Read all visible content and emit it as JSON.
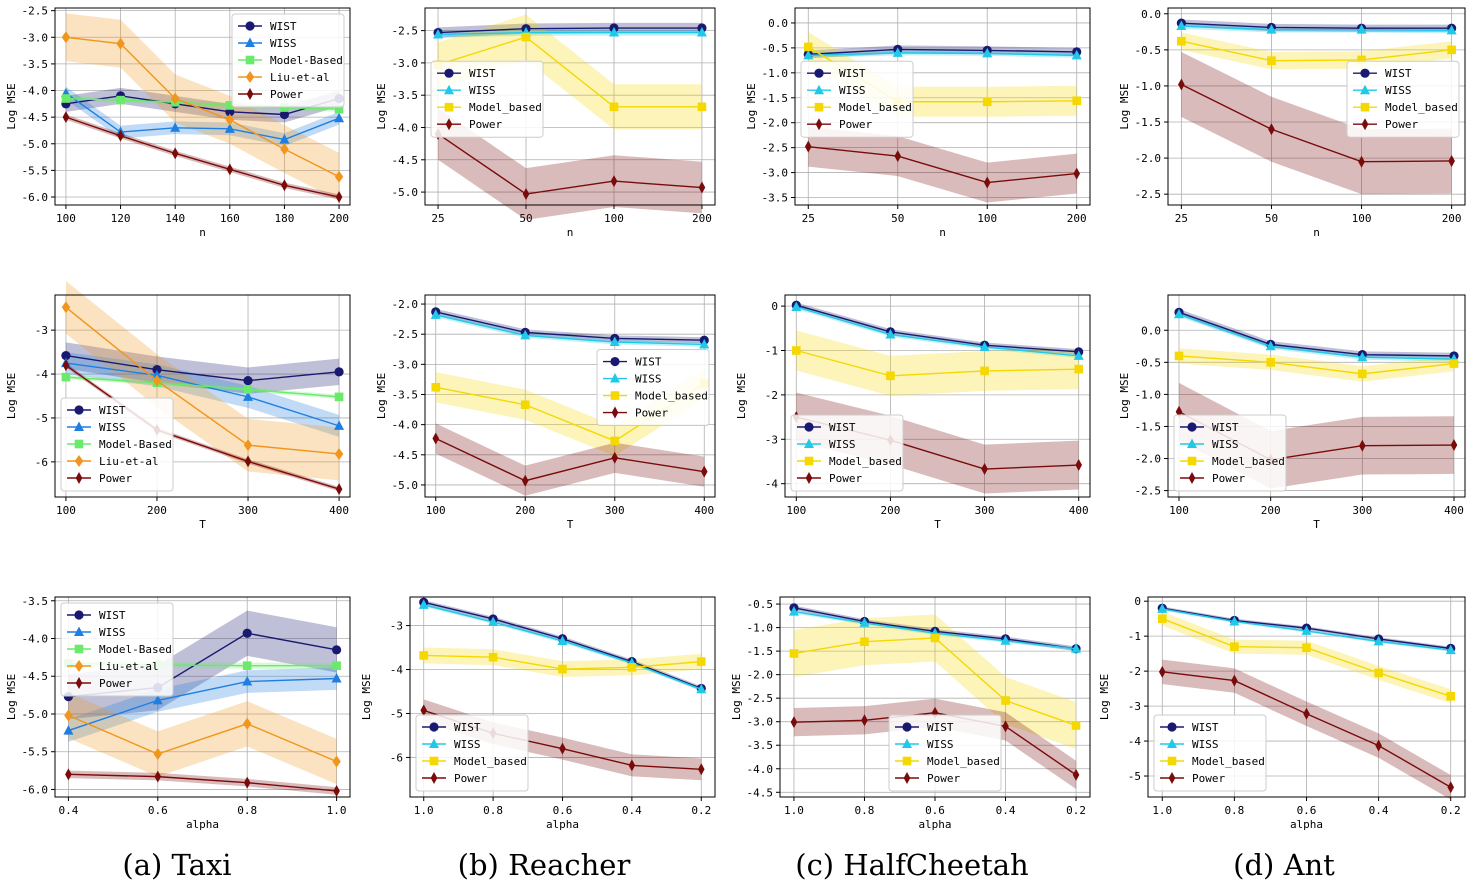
{
  "captions": [
    "(a) Taxi",
    "(b) Reacher",
    "(c) HalfCheetah",
    "(d) Ant"
  ],
  "colors": {
    "WIST": "#191970",
    "WISS": "#1f7fe0",
    "WISS_mj": "#21c8e8",
    "Model-Based": "#6aea6a",
    "Model_based": "#f5d800",
    "Liu-et-al": "#f0961c",
    "Power": "#7a0b0b"
  },
  "chart_data": [
    {
      "id": "taxi-n",
      "type": "line",
      "xlabel": "n",
      "ylabel": "Log MSE",
      "xtype": "linear",
      "x": [
        100,
        120,
        140,
        160,
        180,
        200
      ],
      "xticks": [
        "100",
        "120",
        "140",
        "160",
        "180",
        "200"
      ],
      "xlim": [
        96,
        204
      ],
      "ylim": [
        -6.15,
        -2.45
      ],
      "yticks": [
        -6.0,
        -5.5,
        -5.0,
        -4.5,
        -4.0,
        -3.5,
        -3.0,
        -2.5
      ],
      "ytick_labels": [
        "-6.0",
        "-5.5",
        "-5.0",
        "-4.5",
        "-4.0",
        "-3.5",
        "-3.0",
        "-2.5"
      ],
      "legend": "top-right",
      "series": [
        {
          "name": "WIST",
          "values": [
            -4.25,
            -4.1,
            -4.25,
            -4.4,
            -4.45,
            -4.15
          ],
          "band": 0.15
        },
        {
          "name": "WISS",
          "values": [
            -4.05,
            -4.78,
            -4.7,
            -4.72,
            -4.92,
            -4.52
          ],
          "band": 0.12
        },
        {
          "name": "Model-Based",
          "values": [
            -4.15,
            -4.18,
            -4.22,
            -4.28,
            -4.32,
            -4.35
          ],
          "band": 0.05
        },
        {
          "name": "Liu-et-al",
          "values": [
            -3.0,
            -3.12,
            -4.15,
            -4.55,
            -5.1,
            -5.62
          ],
          "band": 0.45
        },
        {
          "name": "Power",
          "values": [
            -4.5,
            -4.85,
            -5.18,
            -5.48,
            -5.78,
            -6.0
          ],
          "band": 0.05
        }
      ]
    },
    {
      "id": "reacher-n",
      "type": "line",
      "xlabel": "n",
      "ylabel": "Log MSE",
      "xtype": "category",
      "x": [
        25,
        50,
        100,
        200
      ],
      "xticks": [
        "25",
        "50",
        "100",
        "200"
      ],
      "ylim": [
        -5.2,
        -2.15
      ],
      "yticks": [
        -5.0,
        -4.5,
        -4.0,
        -3.5,
        -3.0,
        -2.5
      ],
      "ytick_labels": [
        "-5.0",
        "-4.5",
        "-4.0",
        "-3.5",
        "-3.0",
        "-2.5"
      ],
      "legend": "mid-left",
      "series": [
        {
          "name": "WIST",
          "values": [
            -2.53,
            -2.47,
            -2.46,
            -2.46
          ],
          "band": 0.08
        },
        {
          "name": "WISS",
          "values": [
            -2.56,
            -2.53,
            -2.53,
            -2.53
          ],
          "band": 0.05
        },
        {
          "name": "Model_based",
          "values": [
            -3.03,
            -2.6,
            -3.68,
            -3.68
          ],
          "band": 0.35
        },
        {
          "name": "Power",
          "values": [
            -4.1,
            -5.03,
            -4.83,
            -4.93
          ],
          "band": 0.4
        }
      ]
    },
    {
      "id": "halfcheetah-n",
      "type": "line",
      "xlabel": "n",
      "ylabel": "Log MSE",
      "xtype": "category",
      "x": [
        25,
        50,
        100,
        200
      ],
      "xticks": [
        "25",
        "50",
        "100",
        "200"
      ],
      "ylim": [
        -3.65,
        0.3
      ],
      "yticks": [
        -3.5,
        -3.0,
        -2.5,
        -2.0,
        -1.5,
        -1.0,
        -0.5,
        0.0
      ],
      "ytick_labels": [
        "-3.5",
        "-3.0",
        "-2.5",
        "-2.0",
        "-1.5",
        "-1.0",
        "-0.5",
        "0.0"
      ],
      "legend": "mid-left",
      "series": [
        {
          "name": "WIST",
          "values": [
            -0.63,
            -0.53,
            -0.55,
            -0.58
          ],
          "band": 0.08
        },
        {
          "name": "WISS",
          "values": [
            -0.65,
            -0.6,
            -0.61,
            -0.65
          ],
          "band": 0.05
        },
        {
          "name": "Model_based",
          "values": [
            -0.48,
            -1.58,
            -1.58,
            -1.56
          ],
          "band": 0.3
        },
        {
          "name": "Power",
          "values": [
            -2.48,
            -2.67,
            -3.2,
            -3.02
          ],
          "band": 0.4
        }
      ]
    },
    {
      "id": "ant-n",
      "type": "line",
      "xlabel": "n",
      "ylabel": "Log MSE",
      "xtype": "category",
      "x": [
        25,
        50,
        100,
        200
      ],
      "xticks": [
        "25",
        "50",
        "100",
        "200"
      ],
      "ylim": [
        -2.65,
        0.08
      ],
      "yticks": [
        -2.5,
        -2.0,
        -1.5,
        -1.0,
        -0.5,
        0.0
      ],
      "ytick_labels": [
        "-2.5",
        "-2.0",
        "-1.5",
        "-1.0",
        "-0.5",
        "0.0"
      ],
      "legend": "mid-right",
      "series": [
        {
          "name": "WIST",
          "values": [
            -0.13,
            -0.19,
            -0.2,
            -0.2
          ],
          "band": 0.05
        },
        {
          "name": "WISS",
          "values": [
            -0.17,
            -0.22,
            -0.22,
            -0.23
          ],
          "band": 0.04
        },
        {
          "name": "Model_based",
          "values": [
            -0.38,
            -0.65,
            -0.64,
            -0.5
          ],
          "band": 0.12
        },
        {
          "name": "Power",
          "values": [
            -0.98,
            -1.6,
            -2.05,
            -2.04
          ],
          "band": 0.45
        }
      ]
    },
    {
      "id": "taxi-t",
      "type": "line",
      "xlabel": "T",
      "ylabel": "Log MSE",
      "xtype": "linear",
      "x": [
        100,
        200,
        300,
        400
      ],
      "xticks": [
        "100",
        "200",
        "300",
        "400"
      ],
      "xlim": [
        88,
        412
      ],
      "ylim": [
        -6.8,
        -2.2
      ],
      "yticks": [
        -6,
        -5,
        -4,
        -3
      ],
      "ytick_labels": [
        "-6",
        "-5",
        "-4",
        "-3"
      ],
      "legend": "bottom-left",
      "series": [
        {
          "name": "WIST",
          "values": [
            -3.58,
            -3.9,
            -4.15,
            -3.95
          ],
          "band": 0.3
        },
        {
          "name": "WISS",
          "values": [
            -3.75,
            -4.03,
            -4.52,
            -5.18
          ],
          "band": 0.25
        },
        {
          "name": "Model-Based",
          "values": [
            -4.07,
            -4.2,
            -4.35,
            -4.52
          ],
          "band": 0.05
        },
        {
          "name": "Liu-et-al",
          "values": [
            -2.48,
            -4.15,
            -5.62,
            -5.82
          ],
          "band": 0.6
        },
        {
          "name": "Power",
          "values": [
            -3.8,
            -5.27,
            -5.99,
            -6.62
          ],
          "band": 0.05
        }
      ]
    },
    {
      "id": "reacher-t",
      "type": "line",
      "xlabel": "T",
      "ylabel": "Log MSE",
      "xtype": "linear",
      "x": [
        100,
        200,
        300,
        400
      ],
      "xticks": [
        "100",
        "200",
        "300",
        "400"
      ],
      "xlim": [
        88,
        412
      ],
      "ylim": [
        -5.2,
        -1.85
      ],
      "yticks": [
        -5.0,
        -4.5,
        -4.0,
        -3.5,
        -3.0,
        -2.5,
        -2.0
      ],
      "ytick_labels": [
        "-5.0",
        "-4.5",
        "-4.0",
        "-3.5",
        "-3.0",
        "-2.5",
        "-2.0"
      ],
      "legend": "mid-right",
      "series": [
        {
          "name": "WIST",
          "values": [
            -2.13,
            -2.47,
            -2.57,
            -2.6
          ],
          "band": 0.05
        },
        {
          "name": "WISS",
          "values": [
            -2.18,
            -2.52,
            -2.63,
            -2.67
          ],
          "band": 0.04
        },
        {
          "name": "Model_based",
          "values": [
            -3.38,
            -3.67,
            -4.27,
            -3.32
          ],
          "band": 0.25
        },
        {
          "name": "Power",
          "values": [
            -4.23,
            -4.93,
            -4.55,
            -4.78
          ],
          "band": 0.25
        }
      ]
    },
    {
      "id": "halfcheetah-t",
      "type": "line",
      "xlabel": "T",
      "ylabel": "Log MSE",
      "xtype": "linear",
      "x": [
        100,
        200,
        300,
        400
      ],
      "xticks": [
        "100",
        "200",
        "300",
        "400"
      ],
      "xlim": [
        88,
        412
      ],
      "ylim": [
        -4.3,
        0.25
      ],
      "yticks": [
        -4,
        -3,
        -2,
        -1,
        0
      ],
      "ytick_labels": [
        "-4",
        "-3",
        "-2",
        "-1",
        "0"
      ],
      "legend": "bottom-left",
      "series": [
        {
          "name": "WIST",
          "values": [
            0.02,
            -0.58,
            -0.88,
            -1.03
          ],
          "band": 0.06
        },
        {
          "name": "WISS",
          "values": [
            -0.02,
            -0.64,
            -0.92,
            -1.12
          ],
          "band": 0.05
        },
        {
          "name": "Model_based",
          "values": [
            -1.0,
            -1.57,
            -1.46,
            -1.42
          ],
          "band": 0.45
        },
        {
          "name": "Power",
          "values": [
            -2.5,
            -3.02,
            -3.67,
            -3.58
          ],
          "band": 0.55
        }
      ]
    },
    {
      "id": "ant-t",
      "type": "line",
      "xlabel": "T",
      "ylabel": "Log MSE",
      "xtype": "linear",
      "x": [
        100,
        200,
        300,
        400
      ],
      "xticks": [
        "100",
        "200",
        "300",
        "400"
      ],
      "xlim": [
        88,
        412
      ],
      "ylim": [
        -2.6,
        0.55
      ],
      "yticks": [
        -2.5,
        -2.0,
        -1.5,
        -1.0,
        -0.5,
        0.0
      ],
      "ytick_labels": [
        "-2.5",
        "-2.0",
        "-1.5",
        "-1.0",
        "-0.5",
        "0.0"
      ],
      "legend": "bottom-left",
      "series": [
        {
          "name": "WIST",
          "values": [
            0.28,
            -0.22,
            -0.38,
            -0.4
          ],
          "band": 0.05
        },
        {
          "name": "WISS",
          "values": [
            0.25,
            -0.25,
            -0.42,
            -0.45
          ],
          "band": 0.04
        },
        {
          "name": "Model_based",
          "values": [
            -0.4,
            -0.5,
            -0.68,
            -0.52
          ],
          "band": 0.12
        },
        {
          "name": "Power",
          "values": [
            -1.27,
            -2.02,
            -1.8,
            -1.79
          ],
          "band": 0.45
        }
      ]
    },
    {
      "id": "taxi-alpha",
      "type": "line",
      "xlabel": "alpha",
      "ylabel": "Log MSE",
      "xtype": "linear",
      "x": [
        0.4,
        0.6,
        0.8,
        1.0
      ],
      "xticks": [
        "0.4",
        "0.6",
        "0.8",
        "1.0"
      ],
      "xlim": [
        0.37,
        1.03
      ],
      "ylim": [
        -6.1,
        -3.45
      ],
      "yticks": [
        -6.0,
        -5.5,
        -5.0,
        -4.5,
        -4.0,
        -3.5
      ],
      "ytick_labels": [
        "-6.0",
        "-5.5",
        "-5.0",
        "-4.5",
        "-4.0",
        "-3.5"
      ],
      "legend": "top-left",
      "series": [
        {
          "name": "WIST",
          "values": [
            -4.77,
            -4.65,
            -3.93,
            -4.15
          ],
          "band": 0.3
        },
        {
          "name": "WISS",
          "values": [
            -5.22,
            -4.82,
            -4.57,
            -4.53
          ],
          "band": 0.15
        },
        {
          "name": "Model-Based",
          "values": [
            -4.33,
            -4.35,
            -4.36,
            -4.36
          ],
          "band": 0.04
        },
        {
          "name": "Liu-et-al",
          "values": [
            -5.02,
            -5.53,
            -5.13,
            -5.63
          ],
          "band": 0.3
        },
        {
          "name": "Power",
          "values": [
            -5.8,
            -5.83,
            -5.91,
            -6.02
          ],
          "band": 0.05
        }
      ]
    },
    {
      "id": "reacher-alpha",
      "type": "line",
      "xlabel": "alpha",
      "ylabel": "Log MSE",
      "xtype": "category",
      "x": [
        1.0,
        0.8,
        0.6,
        0.4,
        0.2
      ],
      "xticks": [
        "1.0",
        "0.8",
        "0.6",
        "0.4",
        "0.2"
      ],
      "ylim": [
        -6.9,
        -2.35
      ],
      "yticks": [
        -6,
        -5,
        -4,
        -3
      ],
      "ytick_labels": [
        "-6",
        "-5",
        "-4",
        "-3"
      ],
      "legend": "bottom-left",
      "series": [
        {
          "name": "WIST",
          "values": [
            -2.47,
            -2.85,
            -3.3,
            -3.82,
            -4.43
          ],
          "band": 0.05
        },
        {
          "name": "WISS",
          "values": [
            -2.53,
            -2.92,
            -3.35,
            -3.85,
            -4.45
          ],
          "band": 0.04
        },
        {
          "name": "Model_based",
          "values": [
            -3.68,
            -3.72,
            -3.99,
            -3.95,
            -3.82
          ],
          "band": 0.18
        },
        {
          "name": "Power",
          "values": [
            -4.93,
            -5.45,
            -5.8,
            -6.18,
            -6.27
          ],
          "band": 0.25
        }
      ]
    },
    {
      "id": "halfcheetah-alpha",
      "type": "line",
      "xlabel": "alpha",
      "ylabel": "Log MSE",
      "xtype": "category",
      "x": [
        1.0,
        0.8,
        0.6,
        0.4,
        0.2
      ],
      "xticks": [
        "1.0",
        "0.8",
        "0.6",
        "0.4",
        "0.2"
      ],
      "ylim": [
        -4.6,
        -0.35
      ],
      "yticks": [
        -4.5,
        -4.0,
        -3.5,
        -3.0,
        -2.5,
        -2.0,
        -1.5,
        -1.0,
        -0.5
      ],
      "ytick_labels": [
        "-4.5",
        "-4.0",
        "-3.5",
        "-3.0",
        "-2.5",
        "-2.0",
        "-1.5",
        "-1.0",
        "-0.5"
      ],
      "legend": "bottom-center",
      "series": [
        {
          "name": "WIST",
          "values": [
            -0.58,
            -0.87,
            -1.08,
            -1.24,
            -1.45
          ],
          "band": 0.05
        },
        {
          "name": "WISS",
          "values": [
            -0.66,
            -0.9,
            -1.12,
            -1.28,
            -1.45
          ],
          "band": 0.04
        },
        {
          "name": "Model_based",
          "values": [
            -1.55,
            -1.3,
            -1.22,
            -2.55,
            -3.08
          ],
          "band": 0.5
        },
        {
          "name": "Power",
          "values": [
            -3.01,
            -2.97,
            -2.81,
            -3.1,
            -4.13
          ],
          "band": 0.3
        }
      ]
    },
    {
      "id": "ant-alpha",
      "type": "line",
      "xlabel": "alpha",
      "ylabel": "Log MSE",
      "xtype": "category",
      "x": [
        1.0,
        0.8,
        0.6,
        0.4,
        0.2
      ],
      "xticks": [
        "1.0",
        "0.8",
        "0.6",
        "0.4",
        "0.2"
      ],
      "ylim": [
        -5.6,
        0.12
      ],
      "yticks": [
        -5,
        -4,
        -3,
        -2,
        -1,
        0
      ],
      "ytick_labels": [
        "-5",
        "-4",
        "-3",
        "-2",
        "-1",
        "0"
      ],
      "legend": "bottom-left",
      "series": [
        {
          "name": "WIST",
          "values": [
            -0.2,
            -0.55,
            -0.77,
            -1.08,
            -1.35
          ],
          "band": 0.05
        },
        {
          "name": "WISS",
          "values": [
            -0.22,
            -0.58,
            -0.85,
            -1.15,
            -1.4
          ],
          "band": 0.04
        },
        {
          "name": "Model_based",
          "values": [
            -0.5,
            -1.3,
            -1.33,
            -2.05,
            -2.72
          ],
          "band": 0.2
        },
        {
          "name": "Power",
          "values": [
            -2.02,
            -2.27,
            -3.22,
            -4.13,
            -5.32
          ],
          "band": 0.35
        }
      ]
    }
  ]
}
